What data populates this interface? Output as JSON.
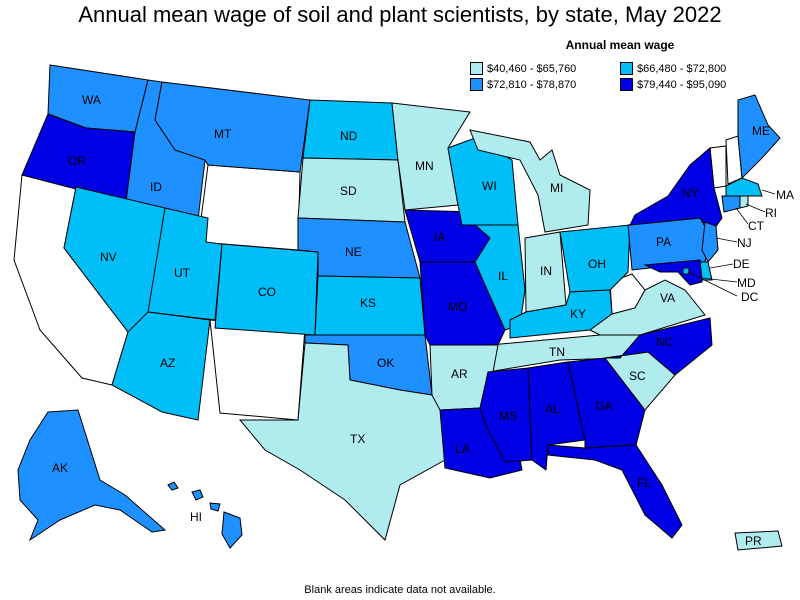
{
  "title": "Annual mean wage of soil and plant scientists, by state, May 2022",
  "legend": {
    "title": "Annual mean wage",
    "items": [
      {
        "label": "$40,460 - $65,760",
        "color": "#b0ecee"
      },
      {
        "label": "$66,480 - $72,800",
        "color": "#00bff8"
      },
      {
        "label": "$72,810 - $78,870",
        "color": "#1e90ff"
      },
      {
        "label": "$79,440 - $95,090",
        "color": "#0000e5"
      }
    ]
  },
  "footnote": "Blank areas indicate data not available.",
  "no_data_color": "#ffffff",
  "states": {
    "WA": 2,
    "OR": 3,
    "ID": 2,
    "MT": 2,
    "ND": 1,
    "SD": 0,
    "MN": 0,
    "WI": 1,
    "MI": 0,
    "NV": 1,
    "UT": 1,
    "CO": 1,
    "NE": 2,
    "KS": 1,
    "IA": 3,
    "MO": 3,
    "IL": 1,
    "IN": 0,
    "OH": 1,
    "KY": 1,
    "AZ": 1,
    "OK": 2,
    "AR": 0,
    "TN": 0,
    "NC": 3,
    "VA": 0,
    "SC": 0,
    "TX": 0,
    "LA": 3,
    "MS": 3,
    "AL": 3,
    "GA": 3,
    "FL": 3,
    "PA": 2,
    "NY": 3,
    "ME": 2,
    "MA": 1,
    "RI": 0,
    "CT": 2,
    "NJ": 2,
    "DE": 1,
    "MD": 3,
    "DC": 1,
    "AK": 2,
    "HI": 2,
    "PR": 0,
    "CA": null,
    "WY": null,
    "NM": null,
    "WV": null,
    "VT": null,
    "NH": null
  },
  "state_labels": {
    "WA": "WA",
    "OR": "OR",
    "ID": "ID",
    "MT": "MT",
    "ND": "ND",
    "SD": "SD",
    "MN": "MN",
    "WI": "WI",
    "MI": "MI",
    "NV": "NV",
    "UT": "UT",
    "CO": "CO",
    "NE": "NE",
    "KS": "KS",
    "IA": "IA",
    "MO": "MO",
    "IL": "IL",
    "IN": "IN",
    "OH": "OH",
    "KY": "KY",
    "AZ": "AZ",
    "OK": "OK",
    "AR": "AR",
    "TN": "TN",
    "NC": "NC",
    "VA": "VA",
    "SC": "SC",
    "TX": "TX",
    "LA": "LA",
    "MS": "MS",
    "AL": "AL",
    "GA": "GA",
    "FL": "FL",
    "PA": "PA",
    "NY": "NY",
    "ME": "ME",
    "MA": "MA",
    "RI": "RI",
    "CT": "CT",
    "NJ": "NJ",
    "DE": "DE",
    "MD": "MD",
    "DC": "DC",
    "AK": "AK",
    "HI": "HI",
    "PR": "PR"
  }
}
